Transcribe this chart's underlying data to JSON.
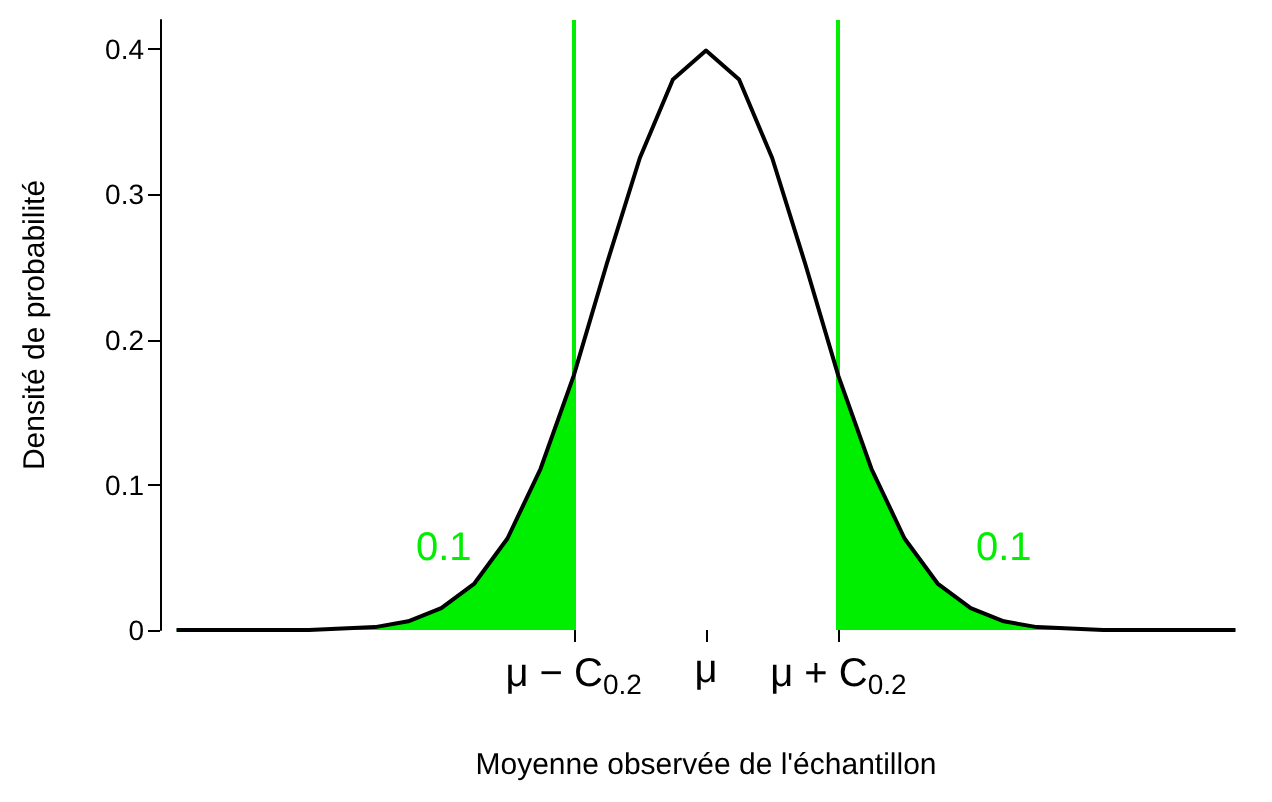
{
  "chart_data": {
    "type": "line",
    "xlabel": "Moyenne observée de l'échantillon",
    "ylabel": "Densité de probabilité",
    "categories": [
      null,
      null,
      null,
      null,
      null,
      null,
      null,
      null,
      null,
      null,
      null,
      null,
      "μ − C$_{0.2}$",
      null,
      null,
      null,
      "μ",
      null,
      null,
      null,
      "μ + C$_{0.2}$",
      null,
      null,
      null,
      null,
      null,
      null,
      null,
      null,
      null,
      null,
      null,
      null
    ],
    "ylim": [
      0,
      0.42
    ],
    "yticks": [
      0,
      0.1,
      0.2,
      0.3,
      0.4
    ],
    "grid": false,
    "marker": "none",
    "series": [
      {
        "color": "#000000",
        "values": [
          0,
          0,
          0,
          0,
          0,
          0.001,
          0.002,
          0.006,
          0.015,
          0.032,
          0.063,
          0.111,
          0.175,
          0.252,
          0.325,
          0.379,
          0.399,
          0.379,
          0.325,
          0.252,
          0.175,
          0.111,
          0.063,
          0.032,
          0.015,
          0.006,
          0.002,
          0.001,
          0,
          0,
          0,
          0,
          0
        ]
      },
      {
        "type": "area",
        "color": "#00ee00",
        "values": [
          0,
          0,
          0,
          0,
          0,
          0.001,
          0.002,
          0.006,
          0.015,
          0.032,
          0.063,
          0.111,
          0.175,
          null,
          null,
          null,
          null,
          null,
          null,
          null,
          null,
          null,
          null,
          null,
          null,
          null,
          null,
          null,
          null,
          null,
          null,
          null,
          null
        ]
      },
      {
        "type": "area",
        "color": "#00ee00",
        "values": [
          null,
          null,
          null,
          null,
          null,
          null,
          null,
          null,
          null,
          null,
          null,
          null,
          null,
          null,
          null,
          null,
          null,
          null,
          null,
          null,
          0.175,
          0.111,
          0.063,
          0.032,
          0.015,
          0.006,
          0.002,
          0.001,
          0,
          0,
          0,
          0,
          0
        ]
      }
    ],
    "ref_lines": [
      {
        "axis": "x",
        "value": "μ − C$_{0.2}$",
        "color": "#00ee00"
      },
      {
        "axis": "x",
        "value": "μ + C$_{0.2}$",
        "color": "#00ee00"
      }
    ],
    "annotations": [
      "0.1",
      "0.1"
    ]
  }
}
